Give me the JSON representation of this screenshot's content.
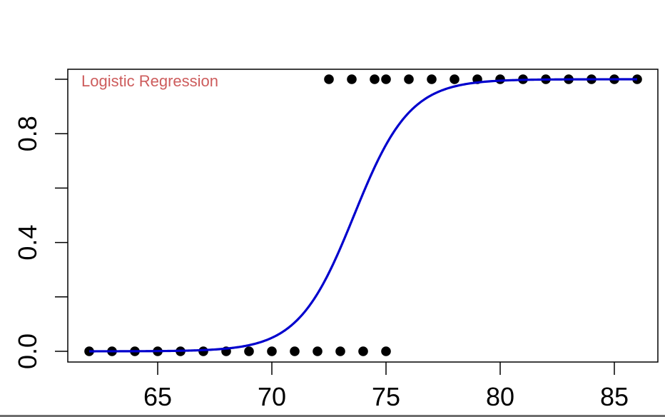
{
  "chart_data": {
    "type": "scatter",
    "title": "",
    "xlabel": "",
    "ylabel": "",
    "xlim": [
      61.3,
      86.9
    ],
    "ylim": [
      -0.04,
      1.04
    ],
    "grid": false,
    "x_ticks": [
      65,
      70,
      75,
      80,
      85
    ],
    "x_tick_labels": [
      "65",
      "70",
      "75",
      "80",
      "85"
    ],
    "y_ticks": [
      0.0,
      0.2,
      0.4,
      0.6,
      0.8,
      1.0
    ],
    "y_tick_labels": [
      "0.0",
      "",
      "0.4",
      "",
      "0.8",
      ""
    ],
    "annotation": {
      "text": "Logistic Regression",
      "color": "#cd5c5c",
      "position": "top-left"
    },
    "series": [
      {
        "name": "observations",
        "kind": "points",
        "color": "#000000",
        "points": [
          [
            62,
            0
          ],
          [
            63,
            0
          ],
          [
            64,
            0
          ],
          [
            65,
            0
          ],
          [
            66,
            0
          ],
          [
            67,
            0
          ],
          [
            68,
            0
          ],
          [
            69,
            0
          ],
          [
            70,
            0
          ],
          [
            71,
            0
          ],
          [
            72,
            0
          ],
          [
            73,
            0
          ],
          [
            74,
            0
          ],
          [
            75,
            0
          ],
          [
            72.5,
            1
          ],
          [
            73.5,
            1
          ],
          [
            74.5,
            1
          ],
          [
            75,
            1
          ],
          [
            76,
            1
          ],
          [
            77,
            1
          ],
          [
            78,
            1
          ],
          [
            79,
            1
          ],
          [
            80,
            1
          ],
          [
            81,
            1
          ],
          [
            82,
            1
          ],
          [
            83,
            1
          ],
          [
            84,
            1
          ],
          [
            85,
            1
          ],
          [
            86,
            1
          ]
        ]
      },
      {
        "name": "fitted logistic curve",
        "kind": "line",
        "color": "#0000cd",
        "model": {
          "midpoint": 73.6,
          "slope": 0.82
        },
        "x_range": [
          62,
          86
        ]
      }
    ]
  }
}
